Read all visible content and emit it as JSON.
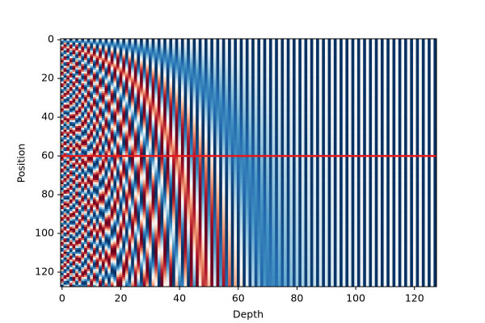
{
  "chart_data": {
    "type": "heatmap",
    "xlabel": "Depth",
    "ylabel": "Position",
    "xlim": [
      -0.5,
      127.5
    ],
    "ylim": [
      127.5,
      -0.5
    ],
    "xticks": [
      0,
      20,
      40,
      60,
      80,
      100,
      120
    ],
    "yticks": [
      0,
      20,
      40,
      60,
      80,
      100,
      120
    ],
    "colormap": "RdBu",
    "hline": {
      "y": 60,
      "color": "#e41a1c"
    }
  }
}
